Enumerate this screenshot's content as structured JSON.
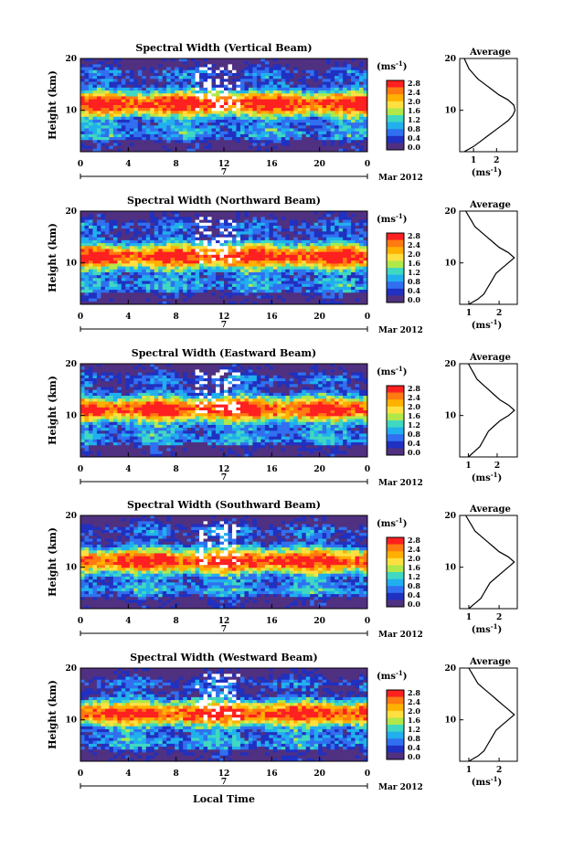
{
  "figure": {
    "xlabel": "Local Time",
    "date_label": "Mar 2012",
    "date_marker": "7",
    "colorbar_unit": "(ms$^{-1}$)",
    "colorbar_ticks": [
      "2.8",
      "2.4",
      "2.0",
      "1.6",
      "1.2",
      "0.8",
      "0.4",
      "0.0"
    ],
    "colorbar_colors": [
      "#ff2020",
      "#ff7a10",
      "#ffb000",
      "#ffe040",
      "#b0e84a",
      "#40d8c0",
      "#20b0ee",
      "#3070f0",
      "#2030c0",
      "#503080"
    ],
    "avg_title": "Average",
    "avg_xlabel": "(ms$^{-1}$)",
    "ylabel": "Height (km)"
  },
  "chart_data": [
    {
      "type": "heatmap",
      "title": "Spectral Width (Vertical Beam)",
      "xlabel": "Local Time",
      "ylabel": "Height (km)",
      "xticks": [
        "0",
        "4",
        "8",
        "12",
        "16",
        "20",
        "0"
      ],
      "xlim": [
        0,
        24
      ],
      "yticks": [
        "20",
        "10"
      ],
      "ylim": [
        2,
        20
      ],
      "colorbar_label": "(ms$^{-1}$)",
      "colorbar_range": [
        0,
        3.0
      ],
      "average_profile": {
        "xticks": [
          "1",
          "2"
        ],
        "xlim": [
          0.4,
          2.9
        ],
        "height": [
          2,
          3,
          4,
          5,
          6,
          7,
          8,
          9,
          10,
          11,
          12,
          13,
          14,
          15,
          16,
          17,
          18,
          19,
          20
        ],
        "value": [
          0.6,
          1.0,
          1.3,
          1.6,
          1.9,
          2.2,
          2.5,
          2.7,
          2.8,
          2.75,
          2.5,
          2.1,
          1.8,
          1.5,
          1.2,
          1.0,
          0.8,
          0.7,
          0.6
        ]
      }
    },
    {
      "type": "heatmap",
      "title": "Spectral Width (Northward Beam)",
      "xlabel": "Local Time",
      "ylabel": "Height (km)",
      "xticks": [
        "0",
        "4",
        "8",
        "12",
        "16",
        "20",
        "0"
      ],
      "xlim": [
        0,
        24
      ],
      "yticks": [
        "20",
        "10"
      ],
      "ylim": [
        2,
        20
      ],
      "colorbar_label": "(ms$^{-1}$)",
      "colorbar_range": [
        0,
        3.0
      ],
      "average_profile": {
        "xticks": [
          "1",
          "2"
        ],
        "xlim": [
          0.7,
          2.6
        ],
        "height": [
          2,
          3,
          4,
          5,
          6,
          7,
          8,
          9,
          10,
          11,
          12,
          13,
          14,
          15,
          16,
          17,
          18,
          19,
          20
        ],
        "value": [
          1.0,
          1.3,
          1.5,
          1.6,
          1.7,
          1.8,
          1.9,
          2.1,
          2.3,
          2.5,
          2.3,
          2.0,
          1.8,
          1.6,
          1.4,
          1.2,
          1.1,
          1.0,
          0.9
        ]
      }
    },
    {
      "type": "heatmap",
      "title": "Spectral Width (Eastward Beam)",
      "xlabel": "Local Time",
      "ylabel": "Height (km)",
      "xticks": [
        "0",
        "4",
        "8",
        "12",
        "16",
        "20",
        "0"
      ],
      "xlim": [
        0,
        24
      ],
      "yticks": [
        "20",
        "10"
      ],
      "ylim": [
        2,
        20
      ],
      "colorbar_label": "(ms$^{-1}$)",
      "colorbar_range": [
        0,
        3.0
      ],
      "average_profile": {
        "xticks": [
          "1",
          "2"
        ],
        "xlim": [
          0.7,
          2.7
        ],
        "height": [
          2,
          3,
          4,
          5,
          6,
          7,
          8,
          9,
          10,
          11,
          12,
          13,
          14,
          15,
          16,
          17,
          18,
          19,
          20
        ],
        "value": [
          1.0,
          1.2,
          1.4,
          1.5,
          1.6,
          1.7,
          1.9,
          2.1,
          2.4,
          2.6,
          2.4,
          2.1,
          1.9,
          1.7,
          1.5,
          1.3,
          1.2,
          1.1,
          1.0
        ]
      }
    },
    {
      "type": "heatmap",
      "title": "Spectral Width (Southward Beam)",
      "xlabel": "Local Time",
      "ylabel": "Height (km)",
      "xticks": [
        "0",
        "4",
        "8",
        "12",
        "16",
        "20",
        "0"
      ],
      "xlim": [
        0,
        24
      ],
      "yticks": [
        "20",
        "10"
      ],
      "ylim": [
        2,
        20
      ],
      "colorbar_label": "(ms$^{-1}$)",
      "colorbar_range": [
        0,
        3.0
      ],
      "average_profile": {
        "xticks": [
          "1",
          "2"
        ],
        "xlim": [
          0.7,
          2.6
        ],
        "height": [
          2,
          3,
          4,
          5,
          6,
          7,
          8,
          9,
          10,
          11,
          12,
          13,
          14,
          15,
          16,
          17,
          18,
          19,
          20
        ],
        "value": [
          1.0,
          1.2,
          1.4,
          1.5,
          1.6,
          1.7,
          1.9,
          2.1,
          2.3,
          2.5,
          2.3,
          2.0,
          1.8,
          1.6,
          1.4,
          1.2,
          1.1,
          1.0,
          0.9
        ]
      }
    },
    {
      "type": "heatmap",
      "title": "Spectral Width (Westward Beam)",
      "xlabel": "Local Time",
      "ylabel": "Height (km)",
      "xticks": [
        "0",
        "4",
        "8",
        "12",
        "16",
        "20",
        "0"
      ],
      "xlim": [
        0,
        24
      ],
      "yticks": [
        "20",
        "10"
      ],
      "ylim": [
        2,
        20
      ],
      "colorbar_label": "(ms$^{-1}$)",
      "colorbar_range": [
        0,
        3.0
      ],
      "average_profile": {
        "xticks": [
          "1",
          "2"
        ],
        "xlim": [
          0.7,
          2.6
        ],
        "height": [
          2,
          3,
          4,
          5,
          6,
          7,
          8,
          9,
          10,
          11,
          12,
          13,
          14,
          15,
          16,
          17,
          18,
          19,
          20
        ],
        "value": [
          1.0,
          1.3,
          1.5,
          1.6,
          1.7,
          1.8,
          1.9,
          2.1,
          2.3,
          2.5,
          2.3,
          2.1,
          1.9,
          1.7,
          1.5,
          1.3,
          1.2,
          1.1,
          1.0
        ]
      }
    }
  ]
}
